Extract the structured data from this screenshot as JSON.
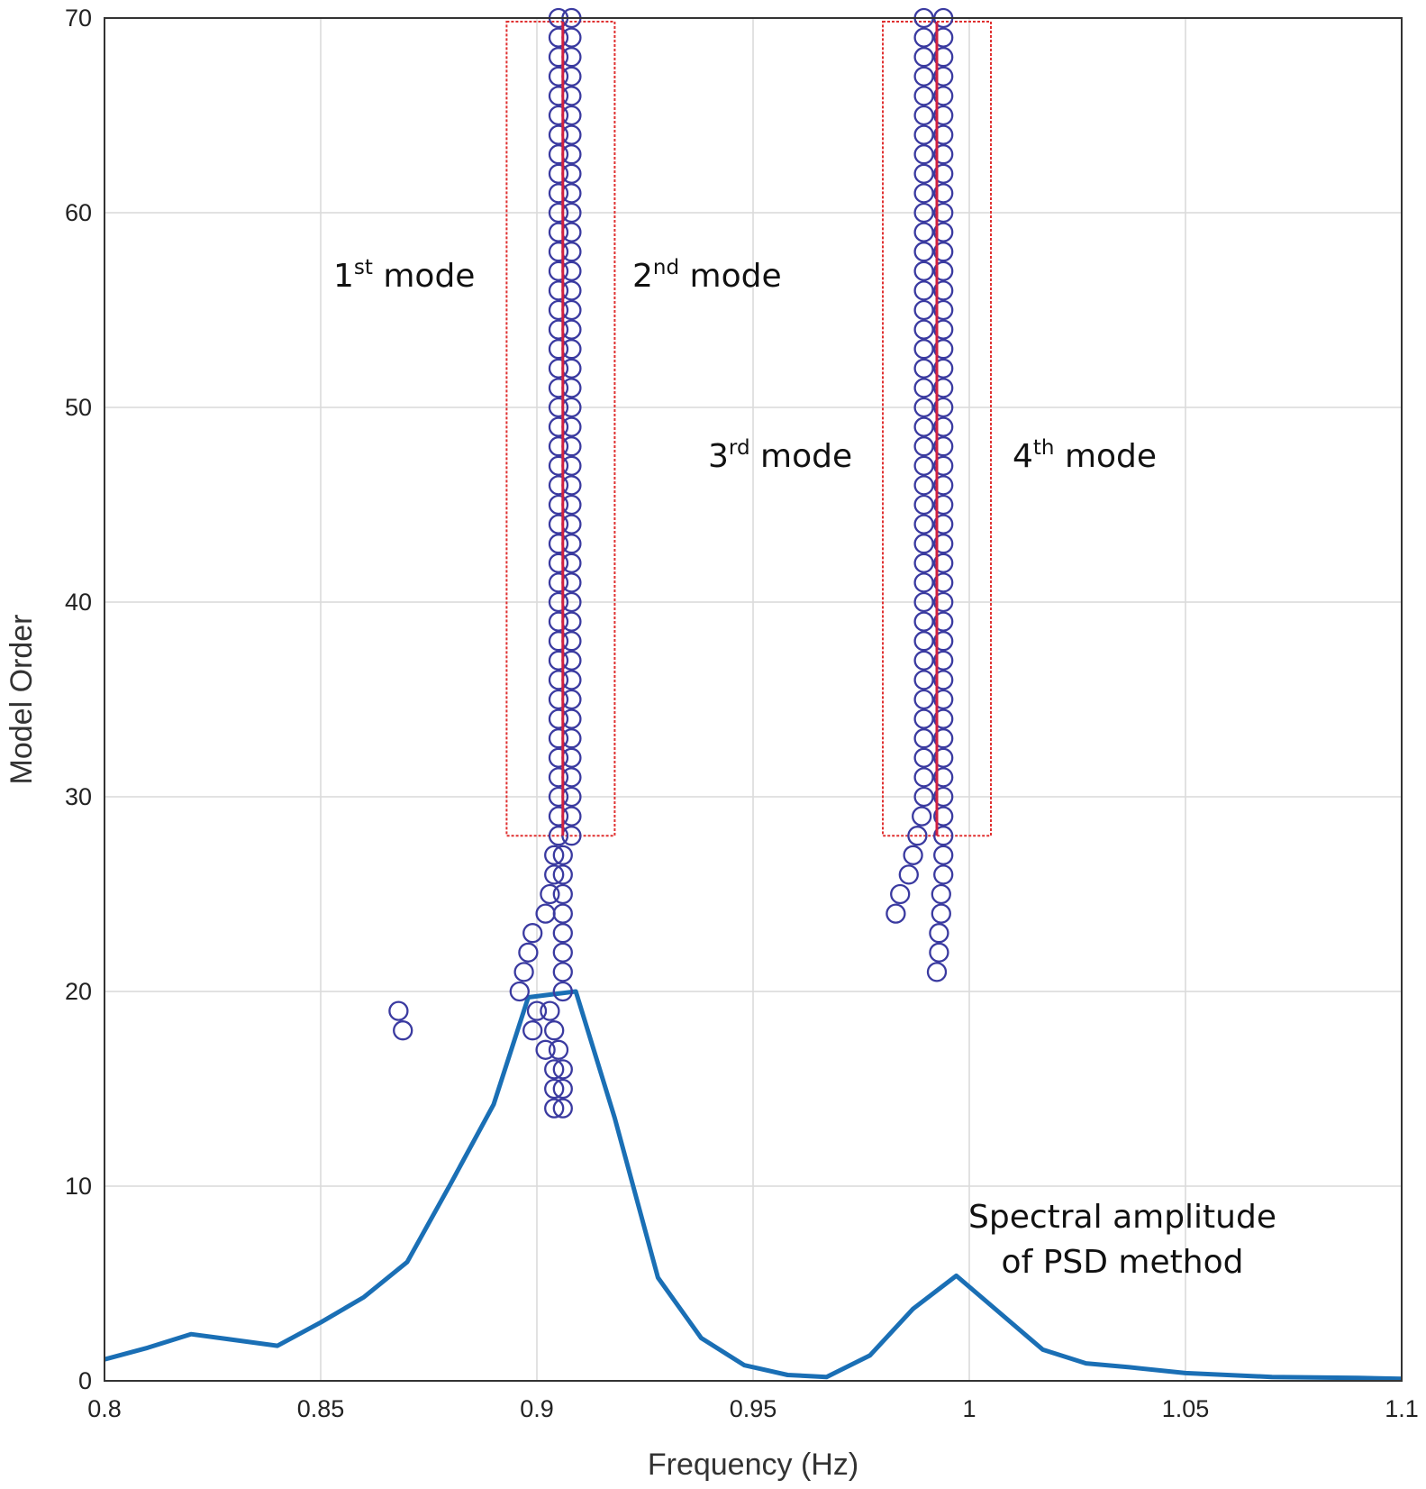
{
  "chart_data": {
    "type": "scatter",
    "xlabel": "Frequency (Hz)",
    "ylabel": "Model Order",
    "xlim": [
      0.8,
      1.1
    ],
    "ylim": [
      0,
      70
    ],
    "xticks": [
      "0.8",
      "0.85",
      "0.9",
      "0.95",
      "1",
      "1.05",
      "1.1"
    ],
    "yticks": [
      "0",
      "10",
      "20",
      "30",
      "40",
      "50",
      "60",
      "70"
    ],
    "grid": true,
    "colors": {
      "markers": "#3a3aa0",
      "psd_line": "#1a6fb5",
      "mode_box": "#e03030",
      "mode_line": "#d02040",
      "grid": "#d9d9d9"
    },
    "series": [
      {
        "marker": "circle",
        "points": [
          [
            0.905,
            70
          ],
          [
            0.905,
            69
          ],
          [
            0.905,
            68
          ],
          [
            0.905,
            67
          ],
          [
            0.905,
            66
          ],
          [
            0.905,
            65
          ],
          [
            0.905,
            64
          ],
          [
            0.905,
            63
          ],
          [
            0.905,
            62
          ],
          [
            0.905,
            61
          ],
          [
            0.905,
            60
          ],
          [
            0.905,
            59
          ],
          [
            0.905,
            58
          ],
          [
            0.905,
            57
          ],
          [
            0.905,
            56
          ],
          [
            0.905,
            55
          ],
          [
            0.905,
            54
          ],
          [
            0.905,
            53
          ],
          [
            0.905,
            52
          ],
          [
            0.905,
            51
          ],
          [
            0.905,
            50
          ],
          [
            0.905,
            49
          ],
          [
            0.905,
            48
          ],
          [
            0.905,
            47
          ],
          [
            0.905,
            46
          ],
          [
            0.905,
            45
          ],
          [
            0.905,
            44
          ],
          [
            0.905,
            43
          ],
          [
            0.905,
            42
          ],
          [
            0.905,
            41
          ],
          [
            0.905,
            40
          ],
          [
            0.905,
            39
          ],
          [
            0.905,
            38
          ],
          [
            0.905,
            37
          ],
          [
            0.905,
            36
          ],
          [
            0.905,
            35
          ],
          [
            0.905,
            34
          ],
          [
            0.905,
            33
          ],
          [
            0.905,
            32
          ],
          [
            0.905,
            31
          ],
          [
            0.905,
            30
          ],
          [
            0.905,
            29
          ],
          [
            0.905,
            28
          ],
          [
            0.908,
            70
          ],
          [
            0.908,
            69
          ],
          [
            0.908,
            68
          ],
          [
            0.908,
            67
          ],
          [
            0.908,
            66
          ],
          [
            0.908,
            65
          ],
          [
            0.908,
            64
          ],
          [
            0.908,
            63
          ],
          [
            0.908,
            62
          ],
          [
            0.908,
            61
          ],
          [
            0.908,
            60
          ],
          [
            0.908,
            59
          ],
          [
            0.908,
            58
          ],
          [
            0.908,
            57
          ],
          [
            0.908,
            56
          ],
          [
            0.908,
            55
          ],
          [
            0.908,
            54
          ],
          [
            0.908,
            53
          ],
          [
            0.908,
            52
          ],
          [
            0.908,
            51
          ],
          [
            0.908,
            50
          ],
          [
            0.908,
            49
          ],
          [
            0.908,
            48
          ],
          [
            0.908,
            47
          ],
          [
            0.908,
            46
          ],
          [
            0.908,
            45
          ],
          [
            0.908,
            44
          ],
          [
            0.908,
            43
          ],
          [
            0.908,
            42
          ],
          [
            0.908,
            41
          ],
          [
            0.908,
            40
          ],
          [
            0.908,
            39
          ],
          [
            0.908,
            38
          ],
          [
            0.908,
            37
          ],
          [
            0.908,
            36
          ],
          [
            0.908,
            35
          ],
          [
            0.908,
            34
          ],
          [
            0.908,
            33
          ],
          [
            0.908,
            32
          ],
          [
            0.908,
            31
          ],
          [
            0.908,
            30
          ],
          [
            0.908,
            29
          ],
          [
            0.908,
            28
          ],
          [
            0.906,
            27
          ],
          [
            0.906,
            26
          ],
          [
            0.906,
            25
          ],
          [
            0.906,
            24
          ],
          [
            0.906,
            23
          ],
          [
            0.906,
            22
          ],
          [
            0.906,
            21
          ],
          [
            0.906,
            20
          ],
          [
            0.904,
            27
          ],
          [
            0.904,
            26
          ],
          [
            0.903,
            25
          ],
          [
            0.902,
            24
          ],
          [
            0.899,
            23
          ],
          [
            0.898,
            22
          ],
          [
            0.897,
            21
          ],
          [
            0.896,
            20
          ],
          [
            0.9,
            19
          ],
          [
            0.899,
            18
          ],
          [
            0.902,
            17
          ],
          [
            0.905,
            17
          ],
          [
            0.904,
            16
          ],
          [
            0.906,
            16
          ],
          [
            0.904,
            15
          ],
          [
            0.906,
            15
          ],
          [
            0.904,
            14
          ],
          [
            0.906,
            14
          ],
          [
            0.903,
            19
          ],
          [
            0.904,
            18
          ],
          [
            0.868,
            19
          ],
          [
            0.869,
            18
          ],
          [
            0.9895,
            70
          ],
          [
            0.9895,
            69
          ],
          [
            0.9895,
            68
          ],
          [
            0.9895,
            67
          ],
          [
            0.9895,
            66
          ],
          [
            0.9895,
            65
          ],
          [
            0.9895,
            64
          ],
          [
            0.9895,
            63
          ],
          [
            0.9895,
            62
          ],
          [
            0.9895,
            61
          ],
          [
            0.9895,
            60
          ],
          [
            0.9895,
            59
          ],
          [
            0.9895,
            58
          ],
          [
            0.9895,
            57
          ],
          [
            0.9895,
            56
          ],
          [
            0.9895,
            55
          ],
          [
            0.9895,
            54
          ],
          [
            0.9895,
            53
          ],
          [
            0.9895,
            52
          ],
          [
            0.9895,
            51
          ],
          [
            0.9895,
            50
          ],
          [
            0.9895,
            49
          ],
          [
            0.9895,
            48
          ],
          [
            0.9895,
            47
          ],
          [
            0.9895,
            46
          ],
          [
            0.9895,
            45
          ],
          [
            0.9895,
            44
          ],
          [
            0.9895,
            43
          ],
          [
            0.9895,
            42
          ],
          [
            0.9895,
            41
          ],
          [
            0.9895,
            40
          ],
          [
            0.9895,
            39
          ],
          [
            0.9895,
            38
          ],
          [
            0.9895,
            37
          ],
          [
            0.9895,
            36
          ],
          [
            0.9895,
            35
          ],
          [
            0.9895,
            34
          ],
          [
            0.9895,
            33
          ],
          [
            0.9895,
            32
          ],
          [
            0.9895,
            31
          ],
          [
            0.9895,
            30
          ],
          [
            0.989,
            29
          ],
          [
            0.988,
            28
          ],
          [
            0.987,
            27
          ],
          [
            0.986,
            26
          ],
          [
            0.984,
            25
          ],
          [
            0.983,
            24
          ],
          [
            0.994,
            70
          ],
          [
            0.994,
            69
          ],
          [
            0.994,
            68
          ],
          [
            0.994,
            67
          ],
          [
            0.994,
            66
          ],
          [
            0.994,
            65
          ],
          [
            0.994,
            64
          ],
          [
            0.994,
            63
          ],
          [
            0.994,
            62
          ],
          [
            0.994,
            61
          ],
          [
            0.994,
            60
          ],
          [
            0.994,
            59
          ],
          [
            0.994,
            58
          ],
          [
            0.994,
            57
          ],
          [
            0.994,
            56
          ],
          [
            0.994,
            55
          ],
          [
            0.994,
            54
          ],
          [
            0.994,
            53
          ],
          [
            0.994,
            52
          ],
          [
            0.994,
            51
          ],
          [
            0.994,
            50
          ],
          [
            0.994,
            49
          ],
          [
            0.994,
            48
          ],
          [
            0.994,
            47
          ],
          [
            0.994,
            46
          ],
          [
            0.994,
            45
          ],
          [
            0.994,
            44
          ],
          [
            0.994,
            43
          ],
          [
            0.994,
            42
          ],
          [
            0.994,
            41
          ],
          [
            0.994,
            40
          ],
          [
            0.994,
            39
          ],
          [
            0.994,
            38
          ],
          [
            0.994,
            37
          ],
          [
            0.994,
            36
          ],
          [
            0.994,
            35
          ],
          [
            0.994,
            34
          ],
          [
            0.994,
            33
          ],
          [
            0.994,
            32
          ],
          [
            0.994,
            31
          ],
          [
            0.994,
            30
          ],
          [
            0.994,
            29
          ],
          [
            0.994,
            28
          ],
          [
            0.994,
            27
          ],
          [
            0.994,
            26
          ],
          [
            0.9935,
            25
          ],
          [
            0.9935,
            24
          ],
          [
            0.993,
            23
          ],
          [
            0.993,
            22
          ],
          [
            0.9925,
            21
          ]
        ]
      },
      {
        "type": "line",
        "x": [
          0.8,
          0.81,
          0.82,
          0.83,
          0.84,
          0.85,
          0.86,
          0.87,
          0.88,
          0.89,
          0.898,
          0.909,
          0.918,
          0.928,
          0.938,
          0.948,
          0.958,
          0.967,
          0.977,
          0.987,
          0.997,
          1.007,
          1.017,
          1.027,
          1.037,
          1.05,
          1.07,
          1.09,
          1.1
        ],
        "y": [
          1.1,
          1.7,
          2.4,
          2.1,
          1.8,
          3.0,
          4.3,
          6.1,
          10.1,
          14.2,
          19.7,
          20.0,
          13.5,
          5.3,
          2.2,
          0.8,
          0.3,
          0.2,
          1.3,
          3.7,
          5.4,
          3.5,
          1.6,
          0.9,
          0.7,
          0.4,
          0.2,
          0.15,
          0.1
        ]
      }
    ],
    "mode_boxes": [
      {
        "x": [
          0.893,
          0.918
        ],
        "y": [
          28,
          70
        ],
        "center": 0.906
      },
      {
        "x": [
          0.98,
          1.005
        ],
        "y": [
          28,
          70
        ],
        "center": 0.9925
      }
    ],
    "annotations": [
      {
        "id": "m1",
        "text": "1",
        "sup": "st",
        "rest": " mode"
      },
      {
        "id": "m2",
        "text": "2",
        "sup": "nd",
        "rest": " mode"
      },
      {
        "id": "m3",
        "text": "3",
        "sup": "rd",
        "rest": " mode"
      },
      {
        "id": "m4",
        "text": "4",
        "sup": "th",
        "rest": " mode"
      },
      {
        "id": "psd1",
        "text": "Spectral amplitude"
      },
      {
        "id": "psd2",
        "text": "of PSD method"
      }
    ]
  }
}
